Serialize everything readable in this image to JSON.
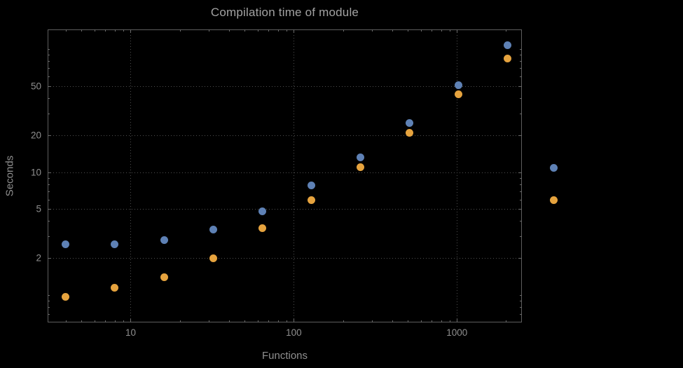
{
  "title": "Compilation time of module",
  "colors": {
    "background": "#000000",
    "series1": "#5e81b5",
    "series2": "#e6a33e",
    "frame": "#5e5e5e",
    "grid": "#4f4f4f",
    "tick_label": "#8f8f8f",
    "title_color": "#a2a2a2"
  },
  "chart_data": {
    "type": "scatter",
    "title": "Compilation time of module",
    "xlabel": "Functions",
    "ylabel": "Seconds",
    "xscale": "log",
    "yscale": "log",
    "xlim": [
      3.1,
      2500
    ],
    "ylim": [
      0.6,
      145
    ],
    "xticks": [
      10,
      100,
      1000
    ],
    "yticks": [
      2,
      5,
      10,
      20,
      50
    ],
    "grid": true,
    "legend_position": "right-outside",
    "series": [
      {
        "name": "series-1-blue",
        "color": "#5e81b5",
        "x": [
          4,
          8,
          16,
          32,
          64,
          128,
          256,
          512,
          1024,
          2048
        ],
        "y": [
          2.6,
          2.6,
          2.8,
          3.4,
          4.8,
          7.8,
          13.2,
          25,
          51,
          108
        ]
      },
      {
        "name": "series-2-orange",
        "color": "#e6a33e",
        "x": [
          4,
          8,
          16,
          32,
          64,
          128,
          256,
          512,
          1024,
          2048
        ],
        "y": [
          0.97,
          1.15,
          1.4,
          2.0,
          3.5,
          5.9,
          11,
          21,
          43,
          84
        ]
      }
    ],
    "legend": {
      "markers": [
        {
          "name": "legend-marker-series-1",
          "color": "#5e81b5",
          "y_value": 10.8
        },
        {
          "name": "legend-marker-series-2",
          "color": "#e6a33e",
          "y_value": 5.9
        }
      ]
    }
  }
}
